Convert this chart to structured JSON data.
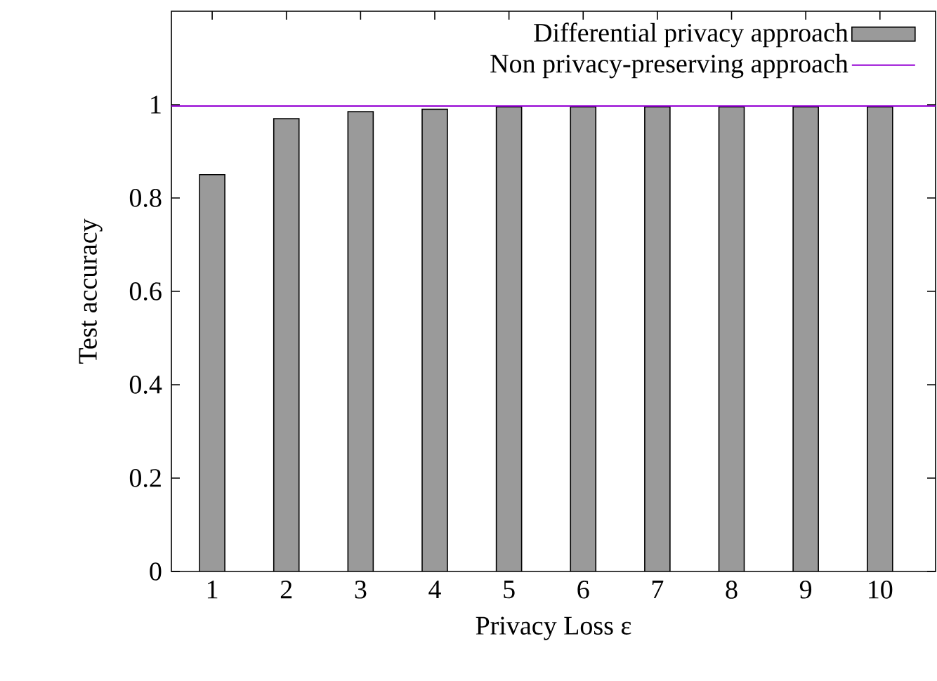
{
  "chart_data": {
    "type": "bar",
    "xlabel": "Privacy Loss ε",
    "ylabel": "Test accuracy",
    "categories": [
      "1",
      "2",
      "3",
      "4",
      "5",
      "6",
      "7",
      "8",
      "9",
      "10"
    ],
    "series": [
      {
        "name": "Differential privacy approach",
        "color": "#9a9a9a",
        "values": [
          0.85,
          0.97,
          0.985,
          0.99,
          0.995,
          0.995,
          0.995,
          0.995,
          0.995,
          0.995
        ]
      }
    ],
    "ref_lines": [
      {
        "axis": "y",
        "value": 0.997,
        "label": "Non privacy-preserving approach",
        "color": "#9400d3"
      }
    ],
    "ylim": [
      0,
      1.2
    ],
    "yticks": [
      0,
      0.2,
      0.4,
      0.6,
      0.8,
      1
    ],
    "grid": false,
    "legend": "top right"
  }
}
